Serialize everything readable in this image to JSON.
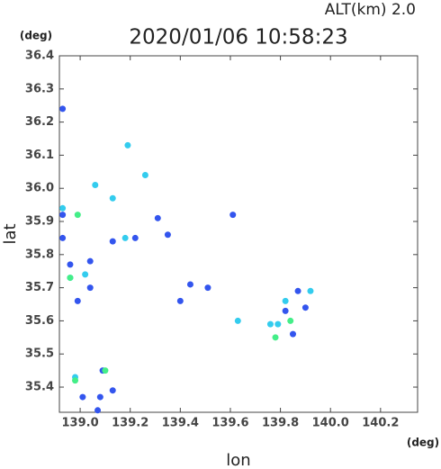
{
  "chart_data": {
    "type": "scatter",
    "title": "2020/01/06 10:58:23",
    "subtitle": "ALT(km) 2.0",
    "y_unit": "(deg)",
    "x_unit": "(deg)",
    "y_label": "lat",
    "x_label": "lon",
    "xlim": [
      138.917,
      140.348
    ],
    "ylim": [
      35.324,
      36.4
    ],
    "xticks": [
      {
        "value": 139,
        "label": "139.0"
      },
      139.2,
      139.4,
      139.6,
      139.8,
      {
        "value": 140,
        "label": "140.0"
      },
      140.2
    ],
    "yticks": [
      35.4,
      35.5,
      35.6,
      35.7,
      35.8,
      35.9,
      {
        "value": 36,
        "label": "36.0"
      },
      36.1,
      36.2,
      36.3,
      36.4
    ],
    "series": [
      {
        "color": "#3355ee",
        "x": [
          138.93,
          138.93,
          138.93,
          138.96,
          138.99,
          139.04,
          139.04,
          139.09,
          139.13,
          139.01,
          139.08,
          139.07,
          139.22,
          139.31,
          139.35,
          139.44,
          139.51,
          139.61,
          139.82,
          139.87,
          139.85,
          139.9,
          139.13,
          139.4
        ],
        "values": [
          36.24,
          35.92,
          35.85,
          35.77,
          35.66,
          35.78,
          35.7,
          35.45,
          35.39,
          35.37,
          35.37,
          35.33,
          35.85,
          35.91,
          35.86,
          35.71,
          35.7,
          35.92,
          35.63,
          35.69,
          35.56,
          35.64,
          35.84,
          35.66
        ]
      },
      {
        "color": "#33ccee",
        "x": [
          138.93,
          139.06,
          139.19,
          139.26,
          139.13,
          139.18,
          139.02,
          139.82,
          139.79,
          139.92,
          139.76,
          138.98,
          139.63,
          138.96
        ],
        "values": [
          35.94,
          36.01,
          36.13,
          36.04,
          35.97,
          35.85,
          35.74,
          35.66,
          35.59,
          35.69,
          35.59,
          35.43,
          35.6,
          35.73
        ]
      },
      {
        "color": "#44ee88",
        "x": [
          138.99,
          138.96,
          139.1,
          138.98,
          139.78,
          139.84
        ],
        "values": [
          35.92,
          35.73,
          35.45,
          35.42,
          35.55,
          35.6
        ]
      }
    ]
  }
}
